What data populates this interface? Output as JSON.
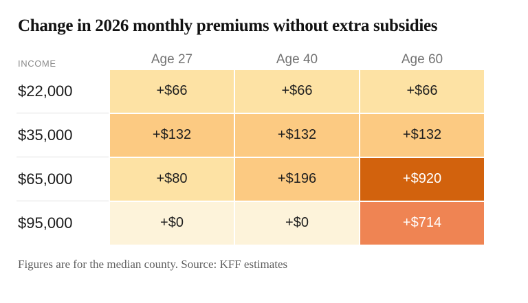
{
  "title": "Change in 2026 monthly premiums without extra subsidies",
  "income_label": "INCOME",
  "columns": [
    "Age 27",
    "Age 40",
    "Age 60"
  ],
  "rows": [
    {
      "income": "$22,000",
      "cells": [
        {
          "label": "+$66",
          "bg": "#fde2a4",
          "fg": "#1f1f1f"
        },
        {
          "label": "+$66",
          "bg": "#fde2a4",
          "fg": "#1f1f1f"
        },
        {
          "label": "+$66",
          "bg": "#fde2a4",
          "fg": "#1f1f1f"
        }
      ]
    },
    {
      "income": "$35,000",
      "cells": [
        {
          "label": "+$132",
          "bg": "#fcca82",
          "fg": "#1f1f1f"
        },
        {
          "label": "+$132",
          "bg": "#fcca82",
          "fg": "#1f1f1f"
        },
        {
          "label": "+$132",
          "bg": "#fcca82",
          "fg": "#1f1f1f"
        }
      ]
    },
    {
      "income": "$65,000",
      "cells": [
        {
          "label": "+$80",
          "bg": "#fde2a4",
          "fg": "#1f1f1f"
        },
        {
          "label": "+$196",
          "bg": "#fcca82",
          "fg": "#1f1f1f"
        },
        {
          "label": "+$920",
          "bg": "#d2620d",
          "fg": "#ffffff"
        }
      ]
    },
    {
      "income": "$95,000",
      "cells": [
        {
          "label": "+$0",
          "bg": "#fdf3da",
          "fg": "#1f1f1f"
        },
        {
          "label": "+$0",
          "bg": "#fdf3da",
          "fg": "#1f1f1f"
        },
        {
          "label": "+$714",
          "bg": "#ef8453",
          "fg": "#ffffff"
        }
      ]
    }
  ],
  "footnote": "Figures are for the median county. Source: KFF estimates",
  "colors": {
    "title_text": "#121212",
    "header_text": "#737373",
    "income_eyebrow_text": "#8b8b8b",
    "separator": "#e0e0e0",
    "footnote_text": "#5f5f5f"
  },
  "chart_data": {
    "type": "heatmap",
    "title": "Change in 2026 monthly premiums without extra subsidies",
    "x_categories": [
      "Age 27",
      "Age 40",
      "Age 60"
    ],
    "y_axis_label": "INCOME",
    "y_categories": [
      "$22,000",
      "$35,000",
      "$65,000",
      "$95,000"
    ],
    "values": [
      [
        66,
        66,
        66
      ],
      [
        132,
        132,
        132
      ],
      [
        80,
        196,
        920
      ],
      [
        0,
        0,
        714
      ]
    ],
    "cell_labels": [
      [
        "+$66",
        "+$66",
        "+$66"
      ],
      [
        "+$132",
        "+$132",
        "+$132"
      ],
      [
        "+$80",
        "+$196",
        "+$920"
      ],
      [
        "+$0",
        "+$0",
        "+$714"
      ]
    ],
    "legend": "none",
    "footnote": "Figures are for the median county. Source: KFF estimates"
  }
}
